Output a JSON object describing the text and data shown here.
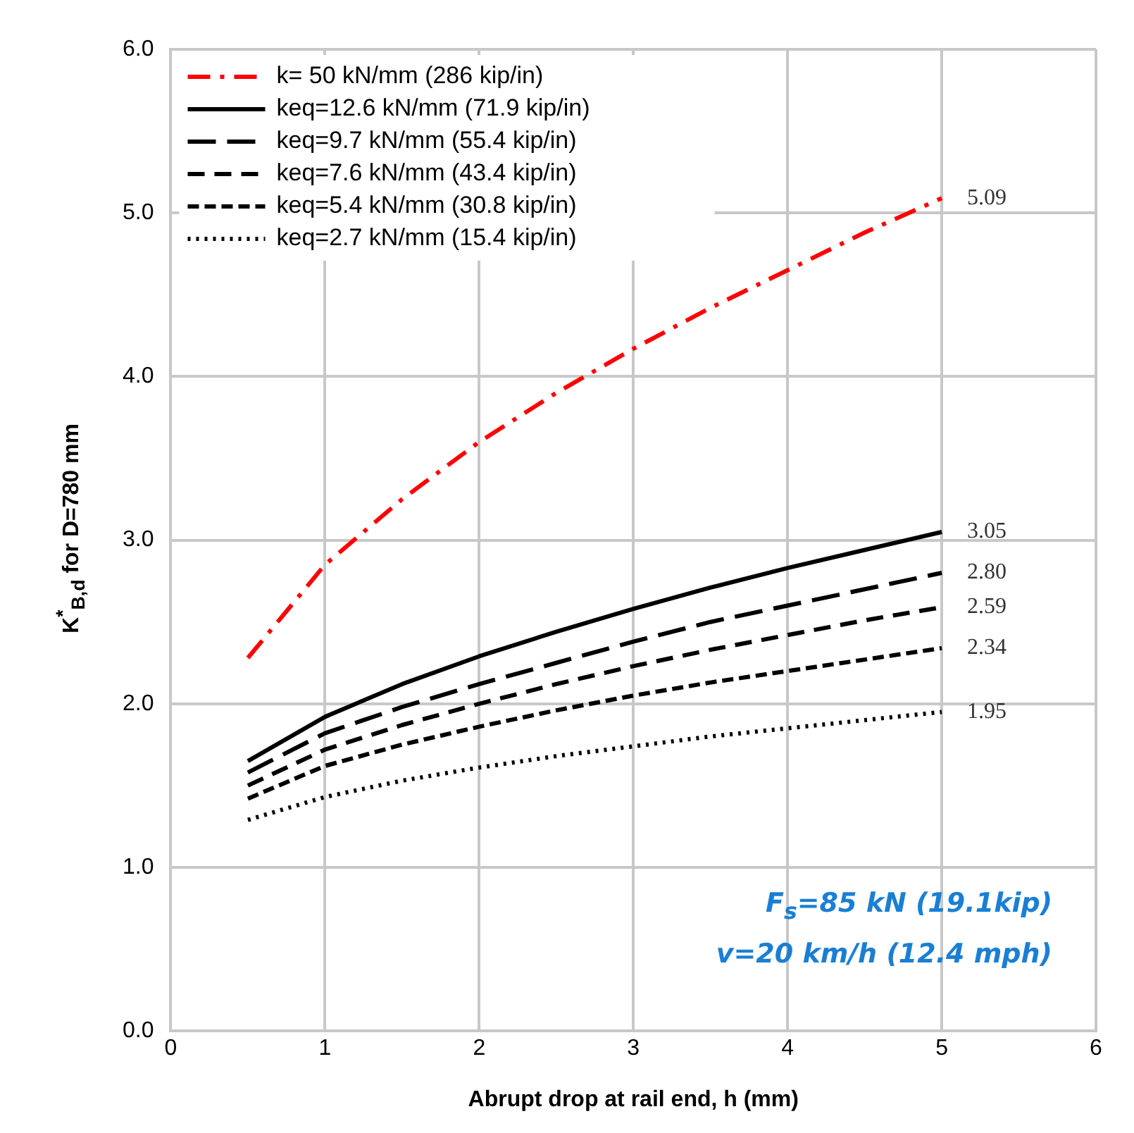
{
  "chart_data": {
    "type": "line",
    "xlabel": "Abrupt drop at rail end, h (mm)",
    "ylabel": "K$^{*}$$_{B,d}$ for D=780 mm",
    "xlim": [
      0,
      6
    ],
    "xticks": [
      0,
      1,
      2,
      3,
      4,
      5,
      6
    ],
    "ylim": [
      0,
      6
    ],
    "yticks": [
      {
        "value": 0,
        "label": "0.0"
      },
      {
        "value": 1,
        "label": "1.0"
      },
      {
        "value": 2,
        "label": "2.0"
      },
      {
        "value": 3,
        "label": "3.0"
      },
      {
        "value": 4,
        "label": "4.0"
      },
      {
        "value": 5,
        "label": "5.0"
      },
      {
        "value": 6,
        "label": "6.0"
      }
    ],
    "grid": true,
    "legend": "top left",
    "marker": "none",
    "x": [
      0.5,
      1,
      1.5,
      2,
      2.5,
      3,
      3.5,
      4,
      4.5,
      5
    ],
    "series": [
      {
        "name": "k= 50 kN/mm (286 kip/in)",
        "color": "#ff0000",
        "line_style": "dashed",
        "values": [
          2.28,
          2.85,
          3.25,
          3.6,
          3.9,
          4.17,
          4.42,
          4.65,
          4.88,
          5.09
        ],
        "value_labels": [
          null,
          null,
          null,
          null,
          null,
          null,
          null,
          null,
          null,
          "5.09"
        ]
      },
      {
        "name": "keq=12.6 kN/mm (71.9 kip/in)",
        "color": "#000000",
        "line_style": "solid",
        "values": [
          1.65,
          1.92,
          2.12,
          2.29,
          2.44,
          2.58,
          2.71,
          2.83,
          2.94,
          3.05
        ],
        "value_labels": [
          null,
          null,
          null,
          null,
          null,
          null,
          null,
          null,
          null,
          "3.05"
        ]
      },
      {
        "name": "keq=9.7 kN/mm (55.4 kip/in)",
        "color": "#000000",
        "line_style": "dashed",
        "values": [
          1.58,
          1.82,
          1.98,
          2.12,
          2.25,
          2.38,
          2.5,
          2.6,
          2.7,
          2.8
        ],
        "value_labels": [
          null,
          null,
          null,
          null,
          null,
          null,
          null,
          null,
          null,
          "2.80"
        ]
      },
      {
        "name": "keq=7.6 kN/mm (43.4 kip/in)",
        "color": "#000000",
        "line_style": "dashed",
        "values": [
          1.5,
          1.72,
          1.87,
          2.0,
          2.12,
          2.23,
          2.33,
          2.42,
          2.51,
          2.59
        ],
        "value_labels": [
          null,
          null,
          null,
          null,
          null,
          null,
          null,
          null,
          null,
          "2.59"
        ]
      },
      {
        "name": "keq=5.4 kN/mm (30.8 kip/in)",
        "color": "#000000",
        "line_style": "dashed",
        "values": [
          1.42,
          1.62,
          1.75,
          1.86,
          1.96,
          2.05,
          2.13,
          2.2,
          2.27,
          2.34
        ],
        "value_labels": [
          null,
          null,
          null,
          null,
          null,
          null,
          null,
          null,
          null,
          "2.34"
        ]
      },
      {
        "name": "keq=2.7 kN/mm (15.4 kip/in)",
        "color": "#000000",
        "line_style": "dotted",
        "values": [
          1.29,
          1.43,
          1.53,
          1.61,
          1.68,
          1.74,
          1.8,
          1.85,
          1.9,
          1.95
        ],
        "value_labels": [
          null,
          null,
          null,
          null,
          null,
          null,
          null,
          null,
          null,
          "1.95"
        ]
      }
    ],
    "annotations": [
      "F$_{s}$=85 kN (19.1kip)",
      "v=20 km/h (12.4 mph)"
    ]
  }
}
